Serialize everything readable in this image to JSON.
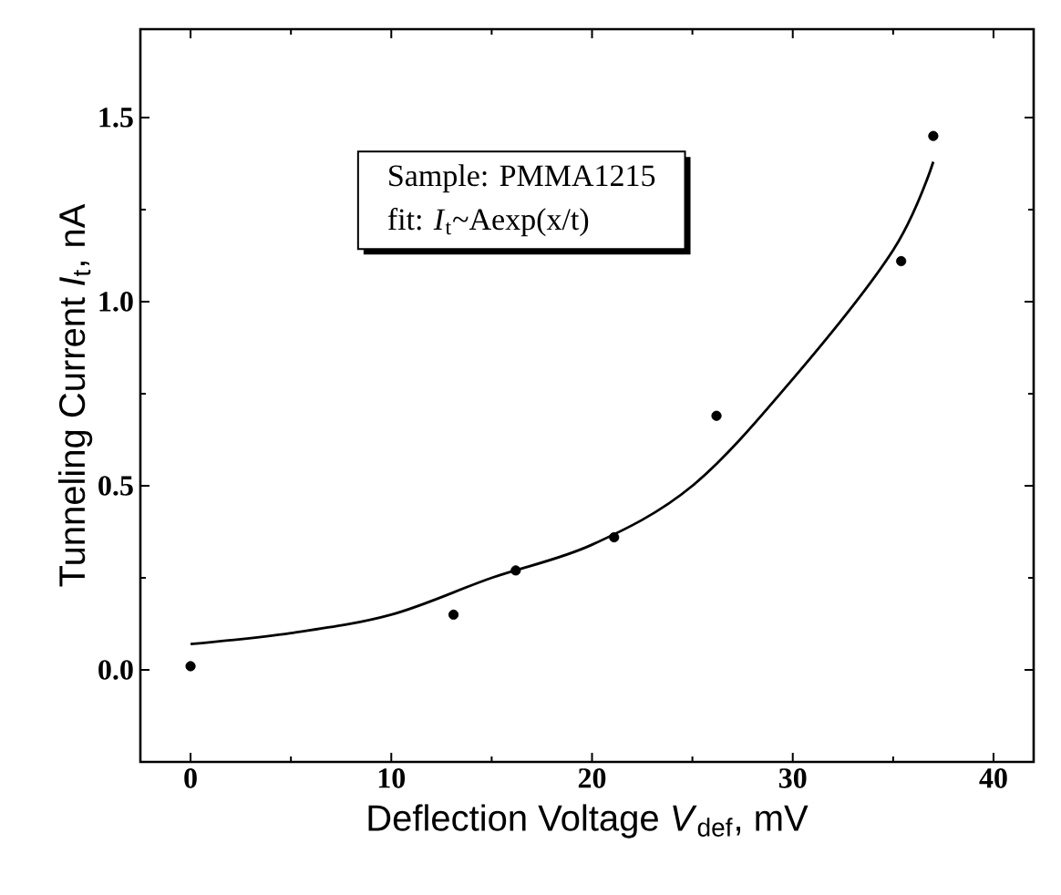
{
  "chart_data": {
    "type": "scatter",
    "xlabel": "Deflection Voltage *V*$_{def}$, mV",
    "ylabel": "Tunneling Current *I*$_{t}$, nA",
    "annotations": [
      "Sample: PMMA1215",
      "fit: *I*$_{t}$~Aexp(x/t)"
    ],
    "xlim": [
      -2.5,
      42
    ],
    "ylim": [
      -0.25,
      1.74
    ],
    "xticks": [
      0,
      10,
      20,
      30,
      40
    ],
    "yticks": [
      {
        "value": 0,
        "label": "0.0"
      },
      0.5,
      {
        "value": 1,
        "label": "1.0"
      },
      1.5
    ],
    "tick_labels": {
      "x": true,
      "y": true
    },
    "grid": false,
    "series": [
      {
        "color": "#000000",
        "marker": "circle",
        "x": [
          0,
          13.1,
          16.2,
          21.1,
          26.2,
          35.4,
          37.0
        ],
        "values": [
          0.01,
          0.15,
          0.27,
          0.36,
          0.69,
          1.11,
          1.45
        ]
      },
      {
        "type": "line",
        "color": "#000000",
        "line_style": "solid",
        "marker": "none",
        "x": [
          0,
          5,
          10,
          15,
          20,
          25,
          30,
          35,
          37
        ],
        "values": [
          0.07,
          0.1,
          0.15,
          0.25,
          0.34,
          0.5,
          0.79,
          1.14,
          1.38
        ]
      }
    ]
  }
}
